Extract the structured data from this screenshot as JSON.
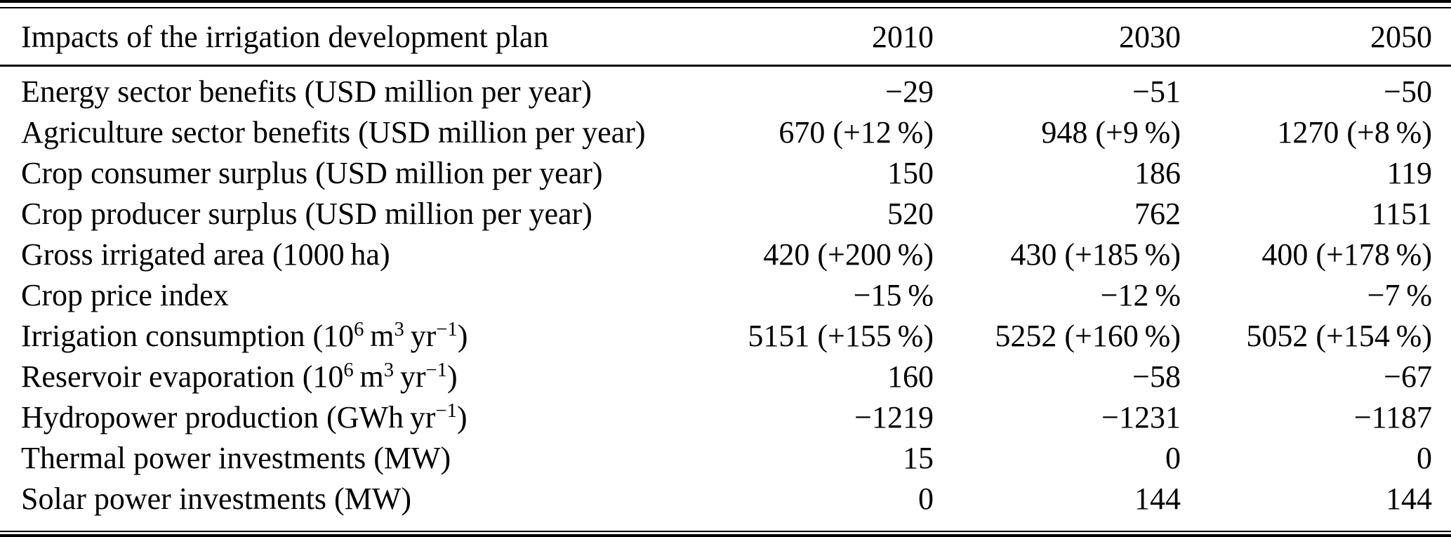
{
  "table": {
    "header": {
      "label": "Impacts of the irrigation development plan",
      "columns": [
        "2010",
        "2030",
        "2050"
      ]
    },
    "rows": [
      {
        "label": "Energy sector benefits (USD million per year)",
        "values": [
          "−29",
          "−51",
          "−50"
        ]
      },
      {
        "label": "Agriculture sector benefits (USD million per year)",
        "values": [
          "670 (+12 %)",
          "948 (+9 %)",
          "1270 (+8 %)"
        ]
      },
      {
        "label": "Crop consumer surplus (USD million per year)",
        "values": [
          "150",
          "186",
          "119"
        ]
      },
      {
        "label": "Crop producer surplus (USD million per year)",
        "values": [
          "520",
          "762",
          "1151"
        ]
      },
      {
        "label": "Gross irrigated area (1000 ha)",
        "values": [
          "420 (+200 %)",
          "430 (+185 %)",
          "400 (+178 %)"
        ]
      },
      {
        "label": "Crop price index",
        "values": [
          "−15 %",
          "−12 %",
          "−7 %"
        ]
      },
      {
        "label": "Irrigation consumption (10^{6} m^{3} yr^{−1})",
        "values": [
          "5151 (+155 %)",
          "5252 (+160 %)",
          "5052 (+154 %)"
        ]
      },
      {
        "label": "Reservoir evaporation (10^{6} m^{3} yr^{−1})",
        "values": [
          "160",
          "−58",
          "−67"
        ]
      },
      {
        "label": "Hydropower production (GWh yr^{−1})",
        "values": [
          "−1219",
          "−1231",
          "−1187"
        ]
      },
      {
        "label": "Thermal power investments (MW)",
        "values": [
          "15",
          "0",
          "0"
        ]
      },
      {
        "label": "Solar power investments (MW)",
        "values": [
          "0",
          "144",
          "144"
        ]
      }
    ]
  },
  "chart_data": {
    "type": "table",
    "title": "Impacts of the irrigation development plan",
    "columns": [
      "2010",
      "2030",
      "2050"
    ],
    "rows": [
      {
        "label": "Energy sector benefits (USD million per year)",
        "values": [
          "−29",
          "−51",
          "−50"
        ]
      },
      {
        "label": "Agriculture sector benefits (USD million per year)",
        "values": [
          "670 (+12 %)",
          "948 (+9 %)",
          "1270 (+8 %)"
        ]
      },
      {
        "label": "Crop consumer surplus (USD million per year)",
        "values": [
          "150",
          "186",
          "119"
        ]
      },
      {
        "label": "Crop producer surplus (USD million per year)",
        "values": [
          "520",
          "762",
          "1151"
        ]
      },
      {
        "label": "Gross irrigated area (1000 ha)",
        "values": [
          "420 (+200 %)",
          "430 (+185 %)",
          "400 (+178 %)"
        ]
      },
      {
        "label": "Crop price index",
        "values": [
          "−15 %",
          "−12 %",
          "−7 %"
        ]
      },
      {
        "label": "Irrigation consumption (10⁶ m³ yr⁻¹)",
        "values": [
          "5151 (+155 %)",
          "5252 (+160 %)",
          "5052 (+154 %)"
        ]
      },
      {
        "label": "Reservoir evaporation (10⁶ m³ yr⁻¹)",
        "values": [
          "160",
          "−58",
          "−67"
        ]
      },
      {
        "label": "Hydropower production (GWh yr⁻¹)",
        "values": [
          "−1219",
          "−1231",
          "−1187"
        ]
      },
      {
        "label": "Thermal power investments (MW)",
        "values": [
          "15",
          "0",
          "0"
        ]
      },
      {
        "label": "Solar power investments (MW)",
        "values": [
          "0",
          "144",
          "144"
        ]
      }
    ]
  }
}
